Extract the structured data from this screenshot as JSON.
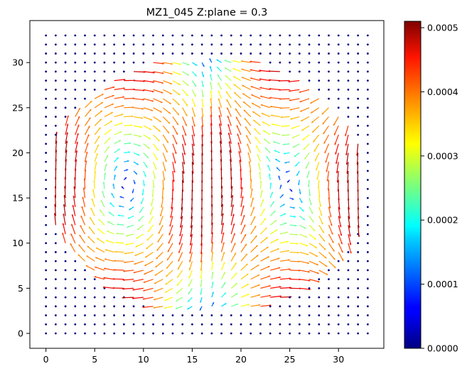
{
  "chart_data": {
    "type": "quiver",
    "title": "MZ1_045   Z:plane = 0.3",
    "xlabel": "",
    "ylabel": "",
    "grid": false,
    "xlim": [
      -1.65,
      34.65
    ],
    "ylim": [
      -1.65,
      34.65
    ],
    "x_ticks": [
      0,
      5,
      10,
      15,
      20,
      25,
      30
    ],
    "y_ticks": [
      0,
      5,
      10,
      15,
      20,
      25,
      30
    ],
    "grid_points": {
      "x_start": 0,
      "x_end": 33,
      "y_start": 0,
      "y_end": 33,
      "step": 1
    },
    "field": {
      "description_of_pattern": "two counter-rotating vortex cells centred near x=9,y=16 and x=24,y=16; strong upward flow along x≈15-16, strong flow at left/right edges",
      "vortex_centers": [
        [
          9,
          16.5
        ],
        [
          24,
          16.5
        ]
      ],
      "active_region": {
        "x_center": 16.5,
        "y_center": 16.5,
        "x_radius": 16.5,
        "y_radius": 14.5
      }
    },
    "colorbar": {
      "colormap": "jet",
      "min": 0.0,
      "max": 0.00051,
      "ticks": [
        0.0,
        0.0001,
        0.0002,
        0.0003,
        0.0004,
        0.0005
      ],
      "tick_labels": [
        "0.0000",
        "0.0001",
        "0.0002",
        "0.0003",
        "0.0004",
        "0.0005"
      ]
    }
  }
}
